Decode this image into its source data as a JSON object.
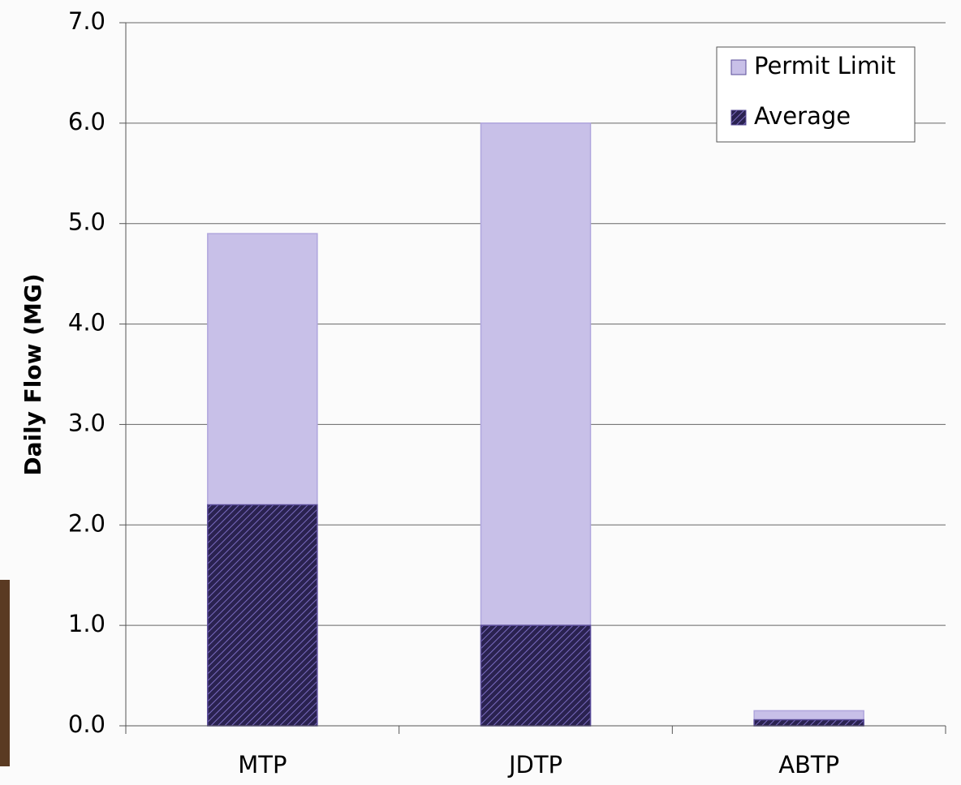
{
  "chart_data": {
    "type": "bar",
    "barmode": "overlay",
    "y_label": "Daily Flow (MG)",
    "categories": [
      "MTP",
      "JDTP",
      "ABTP"
    ],
    "series": [
      {
        "name": "Permit Limit",
        "color": "#c8c0e8",
        "values": [
          4.9,
          6.0,
          0.15
        ]
      },
      {
        "name": "Average",
        "color": "#2a2250",
        "values": [
          2.2,
          1.0,
          0.06
        ]
      }
    ],
    "ylim": [
      0,
      7
    ],
    "yticks": [
      {
        "value": 0,
        "label": "0.0"
      },
      {
        "value": 1,
        "label": "1.0"
      },
      {
        "value": 2,
        "label": "2.0"
      },
      {
        "value": 3,
        "label": "3.0"
      },
      {
        "value": 4,
        "label": "4.0"
      },
      {
        "value": 5,
        "label": "5.0"
      },
      {
        "value": 6,
        "label": "6.0"
      },
      {
        "value": 7,
        "label": "7.0"
      }
    ],
    "grid": true,
    "legend": "upper right"
  }
}
